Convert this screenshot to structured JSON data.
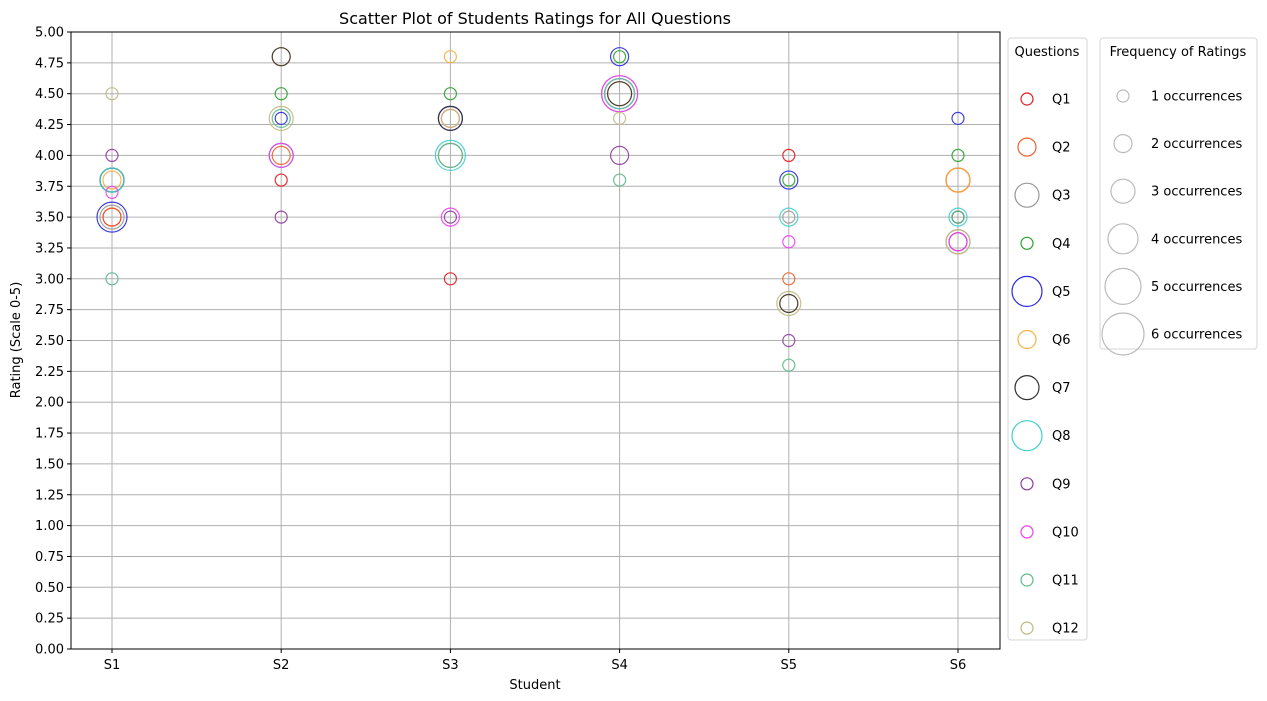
{
  "chart_data": {
    "type": "scatter",
    "title": "Scatter Plot of Students Ratings for All Questions",
    "xlabel": "Student",
    "ylabel": "Rating (Scale 0-5)",
    "categories": [
      "S1",
      "S2",
      "S3",
      "S4",
      "S5",
      "S6"
    ],
    "ylim": [
      0,
      5
    ],
    "yticks": [
      "0.00",
      "0.25",
      "0.50",
      "0.75",
      "1.00",
      "1.25",
      "1.50",
      "1.75",
      "2.00",
      "2.25",
      "2.50",
      "2.75",
      "3.00",
      "3.25",
      "3.50",
      "3.75",
      "4.00",
      "4.25",
      "4.50",
      "4.75",
      "5.00"
    ],
    "grid": true,
    "legend_questions": {
      "title": "Questions",
      "placement": "right",
      "items": [
        {
          "label": "Q1",
          "color": "#e41a1c",
          "size": 1
        },
        {
          "label": "Q2",
          "color": "#f0602c",
          "size": 2
        },
        {
          "label": "Q3",
          "color": "#999999",
          "size": 3
        },
        {
          "label": "Q4",
          "color": "#2ca02c",
          "size": 1
        },
        {
          "label": "Q5",
          "color": "#2a2ae0",
          "size": 4
        },
        {
          "label": "Q6",
          "color": "#f5b041",
          "size": 2
        },
        {
          "label": "Q7",
          "color": "#333333",
          "size": 3
        },
        {
          "label": "Q8",
          "color": "#40cfcf",
          "size": 4
        },
        {
          "label": "Q9",
          "color": "#8e3c9e",
          "size": 1
        },
        {
          "label": "Q10",
          "color": "#ee40ee",
          "size": 1
        },
        {
          "label": "Q11",
          "color": "#5cb88a",
          "size": 1
        },
        {
          "label": "Q12",
          "color": "#c2b983",
          "size": 1
        }
      ]
    },
    "legend_frequency": {
      "title": "Frequency of Ratings",
      "placement": "far-right",
      "color": "#bbbbbb",
      "items": [
        {
          "label": "1 occurrences",
          "size": 1
        },
        {
          "label": "2 occurrences",
          "size": 2
        },
        {
          "label": "3 occurrences",
          "size": 3
        },
        {
          "label": "4 occurrences",
          "size": 4
        },
        {
          "label": "5 occurrences",
          "size": 5
        },
        {
          "label": "6 occurrences",
          "size": 6
        }
      ]
    },
    "series": [
      {
        "name": "Q1",
        "color": "#e41a1c",
        "points": [
          [
            0,
            3.5,
            2
          ],
          [
            1,
            3.8,
            1
          ],
          [
            2,
            3.0,
            1
          ],
          [
            3,
            4.5,
            4
          ],
          [
            4,
            4.0,
            1
          ],
          [
            5,
            3.8,
            3
          ]
        ]
      },
      {
        "name": "Q2",
        "color": "#f0602c",
        "points": [
          [
            0,
            3.5,
            2
          ],
          [
            1,
            4.0,
            2
          ],
          [
            2,
            4.3,
            2
          ],
          [
            3,
            4.5,
            4
          ],
          [
            4,
            3.0,
            1
          ],
          [
            5,
            3.8,
            3
          ]
        ]
      },
      {
        "name": "Q3",
        "color": "#999999",
        "points": [
          [
            0,
            3.5,
            3
          ],
          [
            1,
            4.0,
            3
          ],
          [
            2,
            4.0,
            3
          ],
          [
            3,
            4.5,
            5
          ],
          [
            4,
            3.5,
            1
          ],
          [
            5,
            3.3,
            3
          ]
        ]
      },
      {
        "name": "Q4",
        "color": "#2ca02c",
        "points": [
          [
            0,
            3.8,
            3
          ],
          [
            1,
            4.5,
            1
          ],
          [
            2,
            4.5,
            1
          ],
          [
            3,
            4.8,
            1
          ],
          [
            4,
            3.8,
            1
          ],
          [
            5,
            4.0,
            1
          ]
        ]
      },
      {
        "name": "Q5",
        "color": "#2a2ae0",
        "points": [
          [
            0,
            3.5,
            4
          ],
          [
            1,
            4.3,
            1
          ],
          [
            2,
            4.3,
            3
          ],
          [
            3,
            4.8,
            2
          ],
          [
            4,
            3.8,
            2
          ],
          [
            5,
            4.3,
            1
          ]
        ]
      },
      {
        "name": "Q6",
        "color": "#f5b041",
        "points": [
          [
            0,
            3.8,
            2
          ],
          [
            1,
            4.8,
            2
          ],
          [
            2,
            4.8,
            1
          ],
          [
            3,
            4.5,
            3
          ],
          [
            4,
            2.8,
            2
          ],
          [
            5,
            3.8,
            3
          ]
        ]
      },
      {
        "name": "Q7",
        "color": "#333333",
        "points": [
          [
            0,
            3.8,
            3
          ],
          [
            1,
            4.8,
            2
          ],
          [
            2,
            4.3,
            3
          ],
          [
            3,
            4.5,
            3
          ],
          [
            4,
            2.8,
            2
          ],
          [
            5,
            3.5,
            1
          ]
        ]
      },
      {
        "name": "Q8",
        "color": "#40cfcf",
        "points": [
          [
            0,
            3.8,
            3
          ],
          [
            1,
            4.0,
            3
          ],
          [
            2,
            4.0,
            4
          ],
          [
            3,
            4.5,
            4
          ],
          [
            4,
            3.5,
            2
          ],
          [
            5,
            3.5,
            2
          ]
        ]
      },
      {
        "name": "Q9",
        "color": "#8e3c9e",
        "points": [
          [
            0,
            4.0,
            1
          ],
          [
            1,
            3.5,
            1
          ],
          [
            2,
            3.5,
            1
          ],
          [
            3,
            4.0,
            2
          ],
          [
            4,
            2.5,
            1
          ],
          [
            5,
            3.3,
            2
          ]
        ]
      },
      {
        "name": "Q10",
        "color": "#ee40ee",
        "points": [
          [
            0,
            3.7,
            1
          ],
          [
            1,
            4.0,
            3
          ],
          [
            2,
            3.5,
            2
          ],
          [
            3,
            4.5,
            5
          ],
          [
            4,
            3.3,
            1
          ],
          [
            5,
            3.3,
            2
          ]
        ]
      },
      {
        "name": "Q11",
        "color": "#5cb88a",
        "points": [
          [
            0,
            3.0,
            1
          ],
          [
            1,
            4.3,
            2
          ],
          [
            2,
            4.0,
            3
          ],
          [
            3,
            3.8,
            1
          ],
          [
            4,
            2.3,
            1
          ],
          [
            5,
            3.5,
            1
          ]
        ]
      },
      {
        "name": "Q12",
        "color": "#c2b983",
        "points": [
          [
            0,
            4.5,
            1
          ],
          [
            1,
            4.3,
            3
          ],
          [
            2,
            4.3,
            2
          ],
          [
            3,
            4.3,
            1
          ],
          [
            4,
            2.8,
            3
          ],
          [
            5,
            3.3,
            3
          ]
        ]
      }
    ]
  }
}
